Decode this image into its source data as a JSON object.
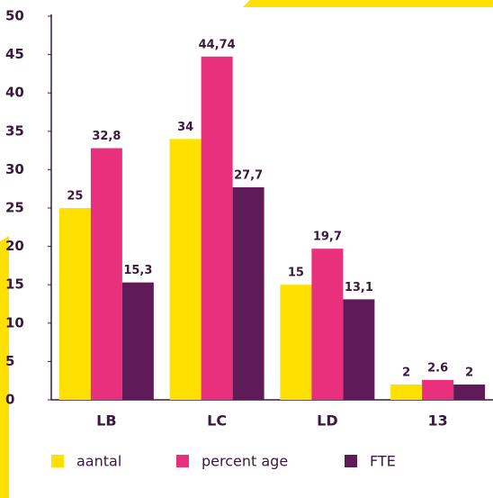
{
  "chart_data": {
    "type": "bar",
    "categories": [
      "LB",
      "LC",
      "LD",
      "13"
    ],
    "series": [
      {
        "name": "aantal",
        "color": "#ffe000",
        "values": [
          25,
          34,
          15,
          2
        ]
      },
      {
        "name": "percent age",
        "color": "#e8307c",
        "values": [
          32.8,
          44.74,
          19.7,
          2.6
        ],
        "value_labels": [
          "32,8",
          "44,74",
          "19,7",
          "2.6"
        ]
      },
      {
        "name": "FTE",
        "color": "#5e1b57",
        "values": [
          15.3,
          27.7,
          13.1,
          2
        ],
        "value_labels": [
          "15,3",
          "27,7",
          "13,1",
          "2"
        ]
      }
    ],
    "ylim": [
      0,
      50
    ],
    "yticks": [
      0,
      5,
      10,
      15,
      20,
      25,
      30,
      35,
      40,
      45,
      50
    ],
    "grid": false,
    "legend": "bottom"
  }
}
